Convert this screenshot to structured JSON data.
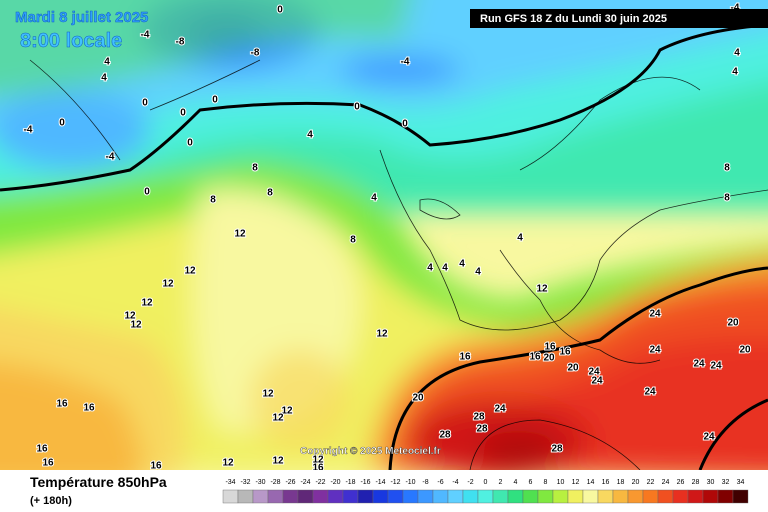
{
  "header": {
    "date": "Mardi 8 juillet 2025",
    "local_time": "8:00 locale",
    "run": "Run GFS 18 Z du Lundi 30 juin 2025",
    "copyright": "Copyright © 2025 Meteociel.fr"
  },
  "legend": {
    "title": "Température 850hPa",
    "lead": "(+ 180h)",
    "ticks": [
      -34,
      -32,
      -30,
      -28,
      -26,
      -24,
      -22,
      -20,
      -18,
      -16,
      -14,
      -12,
      -10,
      -8,
      -6,
      -4,
      -2,
      0,
      2,
      4,
      6,
      8,
      10,
      12,
      14,
      16,
      18,
      20,
      22,
      24,
      26,
      28,
      30,
      32,
      34
    ],
    "colors": [
      "#d8d8d8",
      "#b8b8b8",
      "#b898c8",
      "#9868b0",
      "#783890",
      "#602878",
      "#8030a0",
      "#6030c0",
      "#4030d0",
      "#2020b0",
      "#1838e0",
      "#2050f0",
      "#2878ff",
      "#3c98ff",
      "#50b8ff",
      "#60d0ff",
      "#40e0f0",
      "#50f0e0",
      "#40e8b0",
      "#30e080",
      "#50e050",
      "#80e840",
      "#b8f040",
      "#f0f060",
      "#f8f8a0",
      "#f8d860",
      "#f8b840",
      "#f89830",
      "#f87820",
      "#f05020",
      "#e83020",
      "#d01818",
      "#b00808",
      "#800000",
      "#400000"
    ]
  },
  "contour_labels": [
    0,
    -4,
    -8,
    -8,
    4,
    4,
    -4,
    0,
    0,
    0,
    0,
    0,
    0,
    0,
    0,
    -4,
    -4,
    -4,
    4,
    4,
    4,
    4,
    4,
    4,
    4,
    4,
    4,
    8,
    8,
    8,
    8,
    8,
    8,
    12,
    12,
    12,
    12,
    12,
    12,
    12,
    12,
    12,
    12,
    12,
    12,
    12,
    12,
    16,
    16,
    16,
    16,
    16,
    16,
    16,
    16,
    16,
    16,
    20,
    20,
    20,
    20,
    20,
    24,
    24,
    24,
    24,
    24,
    24,
    24,
    24,
    24,
    28,
    28,
    28,
    28
  ]
}
